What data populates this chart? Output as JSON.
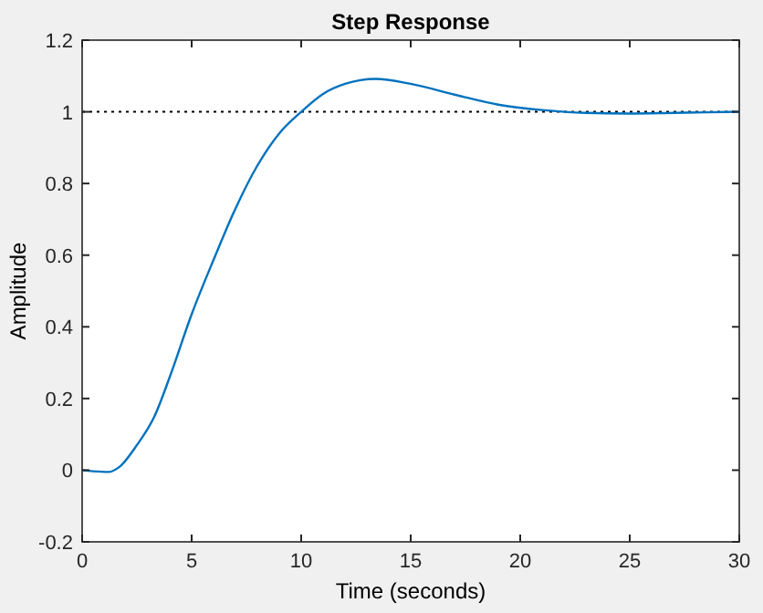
{
  "chart_data": {
    "type": "line",
    "title": "Step Response",
    "xlabel": "Time (seconds)",
    "ylabel": "Amplitude",
    "series": [
      {
        "color": "#0072bd",
        "x": [
          0,
          0.5,
          1.2,
          1.7,
          2.5,
          3.3,
          4,
          5,
          6,
          7,
          8,
          9,
          10,
          11,
          12,
          13.4,
          15,
          17,
          19,
          21,
          23,
          25,
          27,
          30
        ],
        "values": [
          0,
          -0.003,
          -0.005,
          0.009,
          0.07,
          0.15,
          0.26,
          0.435,
          0.587,
          0.73,
          0.85,
          0.94,
          1.0,
          1.05,
          1.078,
          1.092,
          1.078,
          1.048,
          1.02,
          1.005,
          0.997,
          0.995,
          0.997,
          1.0
        ]
      }
    ],
    "xlim": [
      0,
      30
    ],
    "xticks": [
      0,
      5,
      10,
      15,
      20,
      25,
      30
    ],
    "ylim": [
      -0.2,
      1.2
    ],
    "yticks": [
      -0.2,
      0,
      0.2,
      0.4,
      0.6,
      0.8,
      1,
      1.2
    ],
    "ref_lines": [
      {
        "axis": "y",
        "value": 1,
        "color": "#000000",
        "line_style": "dotted"
      }
    ],
    "grid": false,
    "line_style": "solid"
  }
}
